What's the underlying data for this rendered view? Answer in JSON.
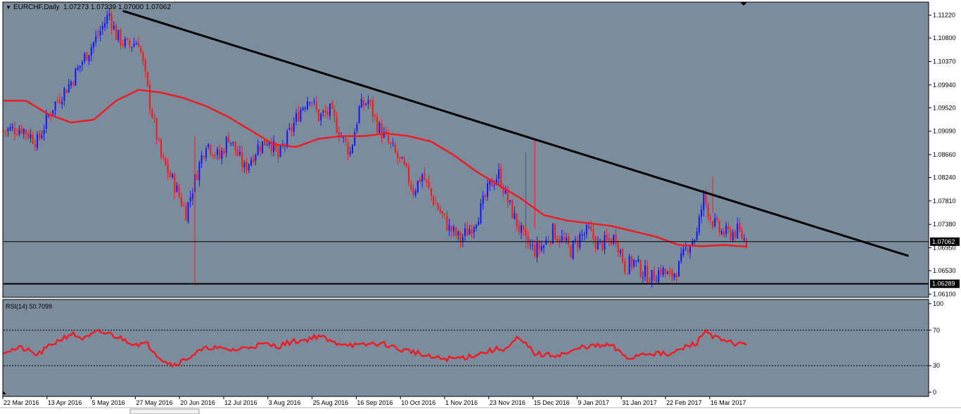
{
  "header": {
    "symbol": "EURCHF,Daily",
    "ohlc": "1.07273 1.07339 1.07000 1.07062"
  },
  "colors": {
    "background": "#7b8d9c",
    "bull": "#1515ff",
    "bear": "#ff1515",
    "ma": "#ee1c24",
    "trendline": "#000000",
    "rsi": "#ee1c24",
    "label_bg": "#000000",
    "label_text": "#ffffff"
  },
  "rsi": {
    "label": "RSI(14) 50.7099",
    "scale": [
      "100",
      "70",
      "30",
      "0"
    ]
  },
  "price_labels": {
    "current": "1.07062",
    "support": "1.06289"
  },
  "chart_data": [
    {
      "type": "candlestick",
      "title": "EURCHF,Daily",
      "x_labels": [
        "22 Mar 2016",
        "13 Apr 2016",
        "5 May 2016",
        "27 May 2016",
        "20 Jun 2016",
        "12 Jul 2016",
        "3 Aug 2016",
        "25 Aug 2016",
        "16 Sep 2016",
        "10 Oct 2016",
        "1 Nov 2016",
        "23 Nov 2016",
        "15 Dec 2016",
        "9 Jan 2017",
        "31 Jan 2017",
        "22 Feb 2017",
        "16 Mar 2017"
      ],
      "y_ticks": [
        "1.11220",
        "1.10800",
        "1.10370",
        "1.09940",
        "1.09520",
        "1.09090",
        "1.08660",
        "1.08240",
        "1.07810",
        "1.07380",
        "1.06950",
        "1.06530",
        "1.06100"
      ],
      "ylim": [
        1.0604,
        1.1146
      ],
      "price_path": [
        [
          0,
          1.091
        ],
        [
          8,
          1.0915
        ],
        [
          15,
          1.089
        ],
        [
          22,
          1.0955
        ],
        [
          30,
          1.1
        ],
        [
          36,
          1.1045
        ],
        [
          42,
          1.1085
        ],
        [
          47,
          1.1125
        ],
        [
          50,
          1.1085
        ],
        [
          55,
          1.1065
        ],
        [
          60,
          1.1075
        ],
        [
          62,
          1.103
        ],
        [
          65,
          1.096
        ],
        [
          70,
          1.086
        ],
        [
          76,
          1.081
        ],
        [
          81,
          1.076
        ],
        [
          85,
          1.082
        ],
        [
          90,
          1.089
        ],
        [
          96,
          1.086
        ],
        [
          100,
          1.09
        ],
        [
          107,
          1.084
        ],
        [
          113,
          1.088
        ],
        [
          118,
          1.0895
        ],
        [
          122,
          1.086
        ],
        [
          127,
          1.0905
        ],
        [
          132,
          1.095
        ],
        [
          136,
          1.0975
        ],
        [
          140,
          1.0935
        ],
        [
          145,
          1.0945
        ],
        [
          150,
          1.09
        ],
        [
          154,
          1.087
        ],
        [
          158,
          1.095
        ],
        [
          162,
          1.0965
        ],
        [
          166,
          1.092
        ],
        [
          172,
          1.088
        ],
        [
          178,
          1.084
        ],
        [
          182,
          1.08
        ],
        [
          186,
          1.083
        ],
        [
          190,
          1.079
        ],
        [
          194,
          1.076
        ],
        [
          198,
          1.073
        ],
        [
          203,
          1.071
        ],
        [
          208,
          1.0735
        ],
        [
          212,
          1.0765
        ],
        [
          216,
          1.081
        ],
        [
          220,
          1.083
        ],
        [
          224,
          1.078
        ],
        [
          228,
          1.074
        ],
        [
          232,
          1.0705
        ],
        [
          236,
          1.069
        ],
        [
          240,
          1.07
        ],
        [
          244,
          1.0725
        ],
        [
          248,
          1.071
        ],
        [
          252,
          1.069
        ],
        [
          256,
          1.0715
        ],
        [
          260,
          1.0725
        ],
        [
          264,
          1.07
        ],
        [
          268,
          1.0705
        ],
        [
          272,
          1.0715
        ],
        [
          276,
          1.066
        ],
        [
          280,
          1.067
        ],
        [
          284,
          1.065
        ],
        [
          288,
          1.064
        ],
        [
          292,
          1.0655
        ],
        [
          296,
          1.064
        ],
        [
          300,
          1.066
        ],
        [
          304,
          1.07
        ],
        [
          308,
          1.072
        ],
        [
          311,
          1.079
        ],
        [
          314,
          1.075
        ],
        [
          318,
          1.0725
        ],
        [
          322,
          1.072
        ],
        [
          326,
          1.0725
        ],
        [
          330,
          1.0706
        ]
      ],
      "moving_average": [
        [
          0,
          1.0965
        ],
        [
          10,
          1.0965
        ],
        [
          20,
          1.094
        ],
        [
          30,
          1.0925
        ],
        [
          40,
          1.093
        ],
        [
          50,
          1.0965
        ],
        [
          60,
          1.0985
        ],
        [
          70,
          1.098
        ],
        [
          80,
          1.097
        ],
        [
          90,
          1.0955
        ],
        [
          100,
          1.0935
        ],
        [
          110,
          1.091
        ],
        [
          120,
          1.0885
        ],
        [
          130,
          1.088
        ],
        [
          140,
          1.0895
        ],
        [
          150,
          1.09
        ],
        [
          160,
          1.09
        ],
        [
          170,
          1.0905
        ],
        [
          180,
          1.09
        ],
        [
          190,
          1.089
        ],
        [
          200,
          1.0865
        ],
        [
          210,
          1.0835
        ],
        [
          220,
          1.081
        ],
        [
          230,
          1.0785
        ],
        [
          240,
          1.0755
        ],
        [
          250,
          1.0745
        ],
        [
          260,
          1.074
        ],
        [
          270,
          1.0735
        ],
        [
          280,
          1.0725
        ],
        [
          290,
          1.0715
        ],
        [
          300,
          1.07
        ],
        [
          310,
          1.0698
        ],
        [
          320,
          1.07
        ],
        [
          330,
          1.0697
        ]
      ],
      "trendline": [
        [
          53,
          1.113
        ],
        [
          402,
          1.068
        ]
      ],
      "hlines": [
        1.07062,
        1.06289
      ],
      "spikes": [
        [
          85,
          1.0625,
          1.09
        ],
        [
          232,
          1.0695,
          1.087
        ],
        [
          236,
          1.073,
          1.0895
        ],
        [
          315,
          1.076,
          1.0825
        ]
      ]
    },
    {
      "type": "line",
      "title": "RSI(14) 50.7099",
      "ylim": [
        0,
        100
      ],
      "levels": [
        70,
        30
      ],
      "y_ticks": [
        "100",
        "70",
        "30",
        "0"
      ],
      "values_path": [
        [
          0,
          46
        ],
        [
          8,
          50
        ],
        [
          15,
          42
        ],
        [
          22,
          55
        ],
        [
          30,
          66
        ],
        [
          36,
          60
        ],
        [
          42,
          68
        ],
        [
          47,
          66
        ],
        [
          52,
          61
        ],
        [
          58,
          55
        ],
        [
          64,
          54
        ],
        [
          70,
          38
        ],
        [
          75,
          31
        ],
        [
          80,
          36
        ],
        [
          86,
          45
        ],
        [
          92,
          51
        ],
        [
          98,
          48
        ],
        [
          104,
          48
        ],
        [
          110,
          52
        ],
        [
          116,
          54
        ],
        [
          122,
          52
        ],
        [
          128,
          57
        ],
        [
          134,
          59
        ],
        [
          140,
          64
        ],
        [
          146,
          56
        ],
        [
          152,
          55
        ],
        [
          158,
          52
        ],
        [
          164,
          55
        ],
        [
          170,
          54
        ],
        [
          176,
          48
        ],
        [
          182,
          46
        ],
        [
          188,
          40
        ],
        [
          194,
          38
        ],
        [
          200,
          38
        ],
        [
          206,
          40
        ],
        [
          212,
          44
        ],
        [
          218,
          48
        ],
        [
          224,
          50
        ],
        [
          228,
          60
        ],
        [
          232,
          54
        ],
        [
          236,
          44
        ],
        [
          240,
          42
        ],
        [
          246,
          42
        ],
        [
          252,
          45
        ],
        [
          258,
          52
        ],
        [
          264,
          52
        ],
        [
          270,
          53
        ],
        [
          274,
          44
        ],
        [
          278,
          38
        ],
        [
          284,
          44
        ],
        [
          290,
          44
        ],
        [
          296,
          42
        ],
        [
          302,
          50
        ],
        [
          308,
          56
        ],
        [
          312,
          70
        ],
        [
          316,
          62
        ],
        [
          320,
          57
        ],
        [
          326,
          55
        ],
        [
          330,
          53
        ]
      ]
    }
  ]
}
